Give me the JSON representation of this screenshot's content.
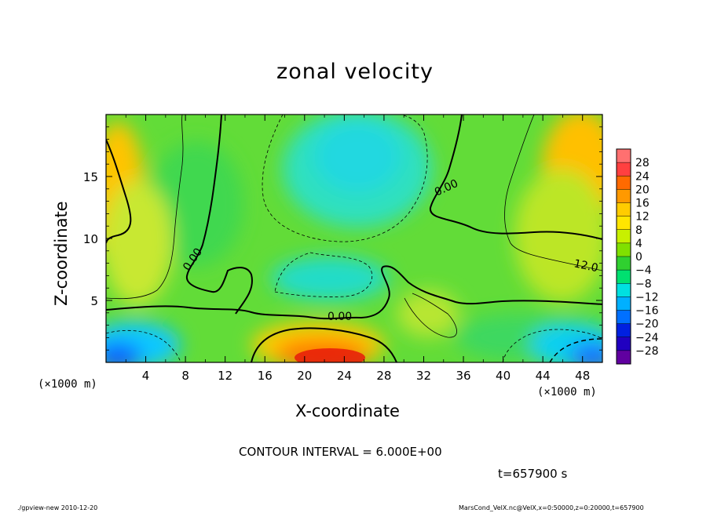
{
  "chart_data": {
    "type": "heatmap",
    "title": "zonal velocity",
    "xlabel": "X-coordinate",
    "ylabel": "Z-coordinate",
    "x_unit": "(×1000 m)",
    "xlim": [
      0,
      50
    ],
    "ylim": [
      0,
      20
    ],
    "x_ticks": [
      "4",
      "8",
      "12",
      "16",
      "20",
      "24",
      "28",
      "32",
      "36",
      "40",
      "44",
      "48"
    ],
    "y_ticks": [
      "5",
      "10",
      "15"
    ],
    "colorbar": {
      "levels": [
        "28",
        "24",
        "20",
        "16",
        "12",
        "8",
        "4",
        "0",
        "-4",
        "-8",
        "-12",
        "-16",
        "-20",
        "-24",
        "-28"
      ],
      "colors": [
        "#ff7070",
        "#ff4040",
        "#ff6a00",
        "#ff9900",
        "#ffcc00",
        "#ffe600",
        "#c8f000",
        "#80e000",
        "#30d030",
        "#00e070",
        "#00e0e0",
        "#00b0ff",
        "#0070ff",
        "#0020e0",
        "#2000c0",
        "#6000a0"
      ]
    },
    "contour_labels": [
      "0.00",
      "0.00",
      "0.00",
      "12.0"
    ],
    "contour_interval_text": "CONTOUR INTERVAL = 6.000E+00",
    "time_text": "t=657900 s",
    "grid": false
  },
  "footer": {
    "left": "./gpview-new  2010-12-20",
    "right": "MarsCond_VelX.nc@VelX,x=0:50000,z=0:20000,t=657900"
  }
}
